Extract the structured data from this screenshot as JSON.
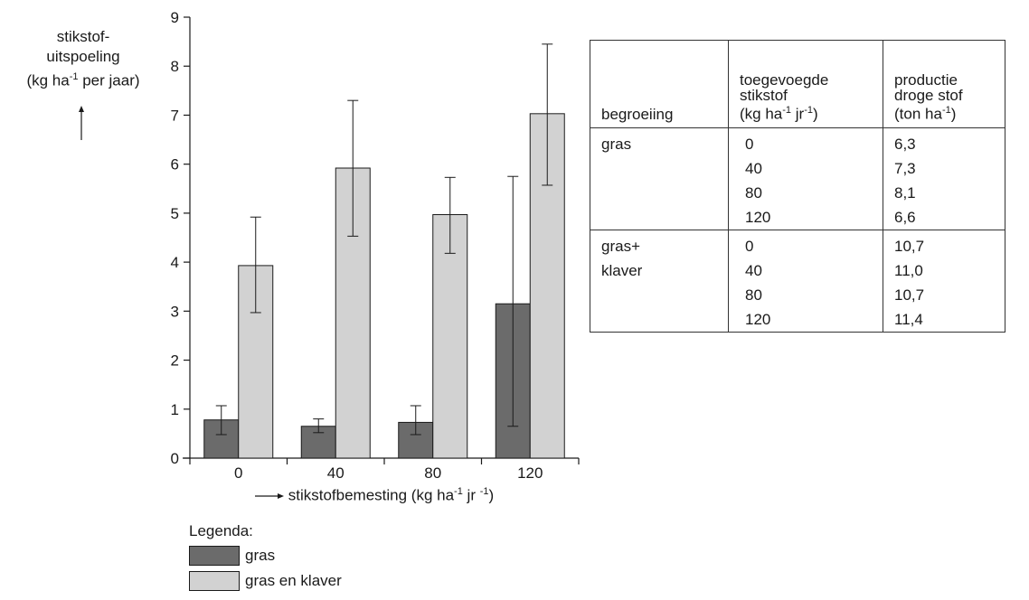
{
  "chart_data": {
    "type": "bar",
    "y_axis_label": [
      "stikstof-",
      "uitspoeling",
      "(kg ha",
      "-1",
      " per jaar)"
    ],
    "x_axis_label": [
      "stikstofbemesting (kg ha",
      "-1",
      " jr ",
      "-1",
      ")"
    ],
    "categories": [
      "0",
      "40",
      "80",
      "120"
    ],
    "ylim": [
      0,
      9
    ],
    "yticks": [
      "0",
      "1",
      "2",
      "3",
      "4",
      "5",
      "6",
      "7",
      "8",
      "9"
    ],
    "series": [
      {
        "name": "gras",
        "color": "#6b6b6b",
        "values": [
          0.78,
          0.65,
          0.73,
          3.15
        ],
        "err_low": [
          0.48,
          0.52,
          0.48,
          0.65
        ],
        "err_high": [
          1.07,
          0.8,
          1.07,
          5.75
        ]
      },
      {
        "name": "gras en klaver",
        "color": "#d2d2d2",
        "values": [
          3.93,
          5.92,
          4.97,
          7.03
        ],
        "err_low": [
          2.97,
          4.53,
          4.18,
          5.57
        ],
        "err_high": [
          4.92,
          7.3,
          5.73,
          8.45
        ]
      }
    ],
    "legend": {
      "title": "Legenda:",
      "position": "bottom-left"
    }
  },
  "table": {
    "headers": {
      "col1": "begroeiing",
      "col2": [
        "toegevoegde",
        "stikstof",
        "(kg ha",
        "-1",
        " jr",
        "-1",
        ")"
      ],
      "col3": [
        "productie",
        "droge stof",
        "(ton ha",
        "-1",
        ")"
      ]
    },
    "rows": [
      [
        "gras",
        "0",
        "6,3"
      ],
      [
        "",
        "40",
        "7,3"
      ],
      [
        "",
        "80",
        "8,1"
      ],
      [
        "",
        "120",
        "6,6"
      ],
      [
        "gras+",
        "0",
        "10,7"
      ],
      [
        "klaver",
        "40",
        "11,0"
      ],
      [
        "",
        "80",
        "10,7"
      ],
      [
        "",
        "120",
        "11,4"
      ]
    ]
  }
}
